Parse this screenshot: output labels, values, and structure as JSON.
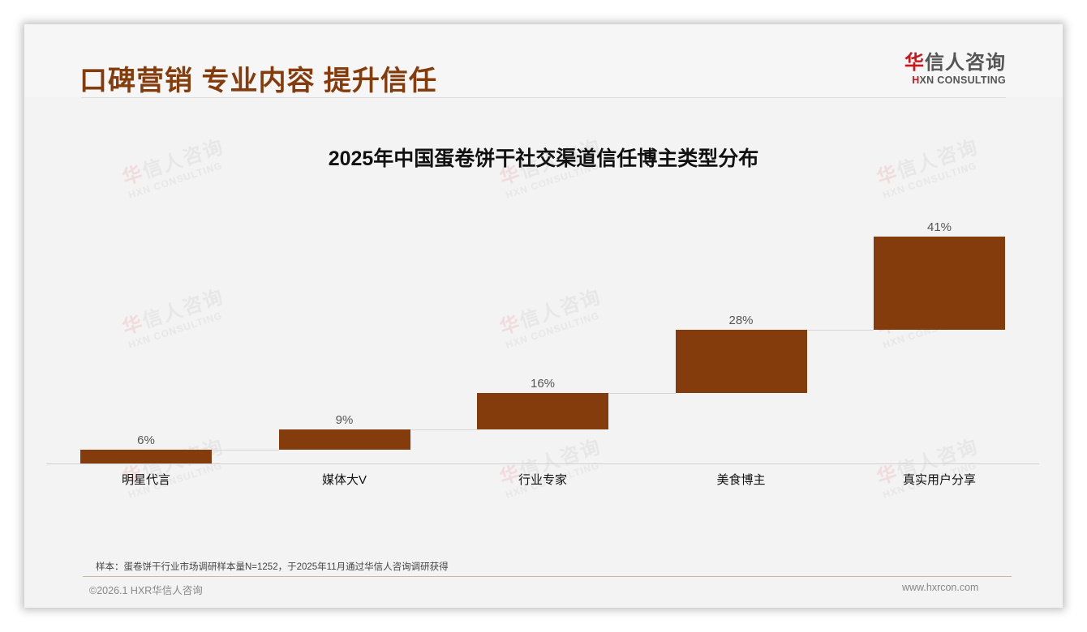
{
  "header": {
    "title": "口碑营销 专业内容 提升信任",
    "logo_cn_first": "华",
    "logo_cn_rest": "信人咨询",
    "logo_en_first": "H",
    "logo_en_rest": "XN CONSULTING"
  },
  "watermark": {
    "cn_first": "华",
    "cn_rest": "信人咨询",
    "en": "HXN CONSULTING"
  },
  "chart_data": {
    "type": "bar",
    "subtype": "waterfall",
    "title": "2025年中国蛋卷饼干社交渠道信任博主类型分布",
    "categories": [
      "明星代言",
      "媒体大V",
      "行业专家",
      "美食博主",
      "真实用户分享"
    ],
    "values": [
      6,
      9,
      16,
      28,
      41
    ],
    "value_labels": [
      "6%",
      "9%",
      "16%",
      "28%",
      "41%"
    ],
    "unit": "%",
    "xlabel": "",
    "ylabel": "",
    "ylim": [
      0,
      100
    ],
    "grid": false,
    "legend": "none",
    "bar_color": "#843c0c"
  },
  "footer": {
    "note": "样本：蛋卷饼干行业市场调研样本量N=1252，于2025年11月通过华信人咨询调研获得",
    "copyright": "©2026.1 HXR华信人咨询",
    "website": "www.hxrcon.com"
  }
}
